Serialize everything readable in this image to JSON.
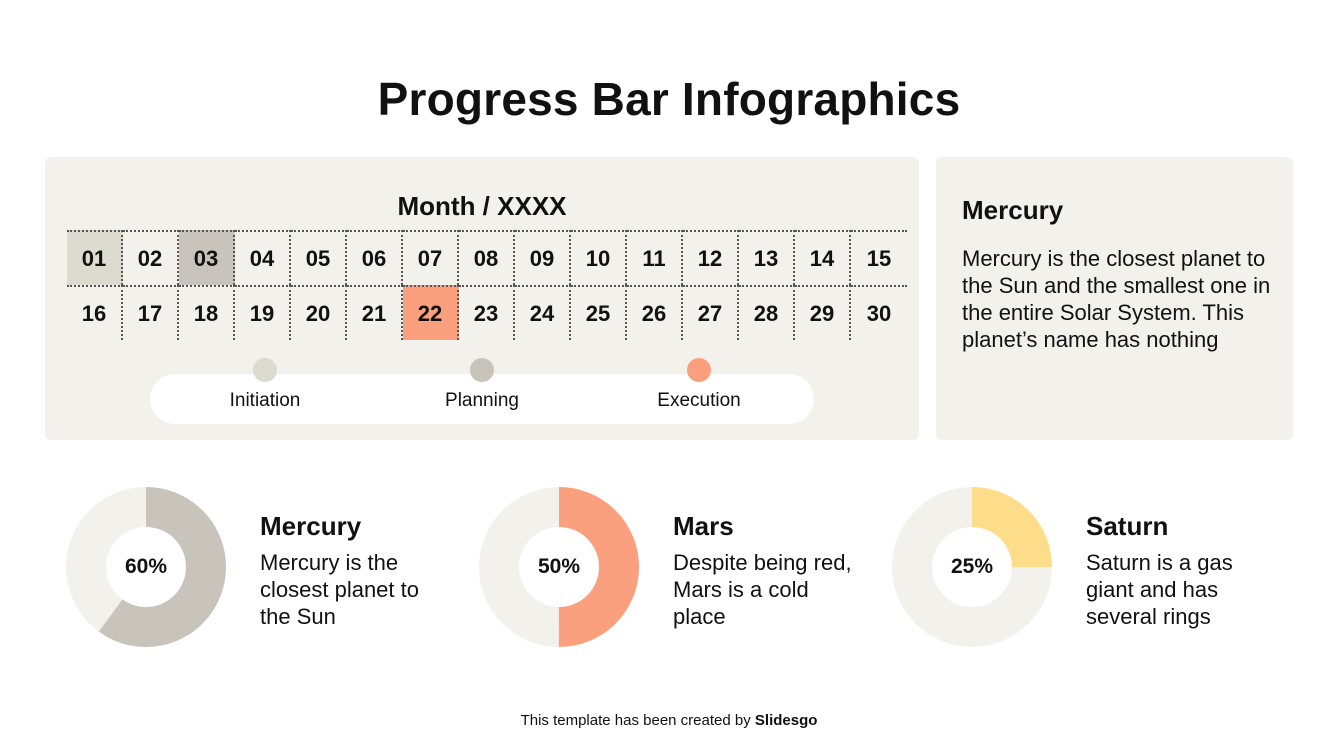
{
  "title": "Progress Bar Infographics",
  "calendar": {
    "month_label": "Month / XXXX",
    "days": [
      "01",
      "02",
      "03",
      "04",
      "05",
      "06",
      "07",
      "08",
      "09",
      "10",
      "11",
      "12",
      "13",
      "14",
      "15",
      "16",
      "17",
      "18",
      "19",
      "20",
      "21",
      "22",
      "23",
      "24",
      "25",
      "26",
      "27",
      "28",
      "29",
      "30"
    ],
    "highlights": {
      "01": "initiation",
      "03": "planning",
      "22": "execution"
    }
  },
  "legend": [
    {
      "label": "Initiation",
      "color": "#dcdbd0"
    },
    {
      "label": "Planning",
      "color": "#c9c4bb"
    },
    {
      "label": "Execution",
      "color": "#fba07e"
    }
  ],
  "info": {
    "title": "Mercury",
    "text": "Mercury is the closest planet to the Sun and the smallest one in the entire Solar System. This planet’s name has nothing"
  },
  "stats": [
    {
      "title": "Mercury",
      "percent_label": "60%",
      "value": 60,
      "text": "Mercury is the closest planet to the Sun",
      "color": "#c9c4bb"
    },
    {
      "title": "Mars",
      "percent_label": "50%",
      "value": 50,
      "text": "Despite being red, Mars is a cold place",
      "color": "#fba07e"
    },
    {
      "title": "Saturn",
      "percent_label": "25%",
      "value": 25,
      "text": "Saturn is a gas giant and has several rings",
      "color": "#fddc8a"
    }
  ],
  "donut_track_color": "#f3f1ec",
  "footer": {
    "prefix": "This template has been created by ",
    "brand": "Slidesgo"
  }
}
